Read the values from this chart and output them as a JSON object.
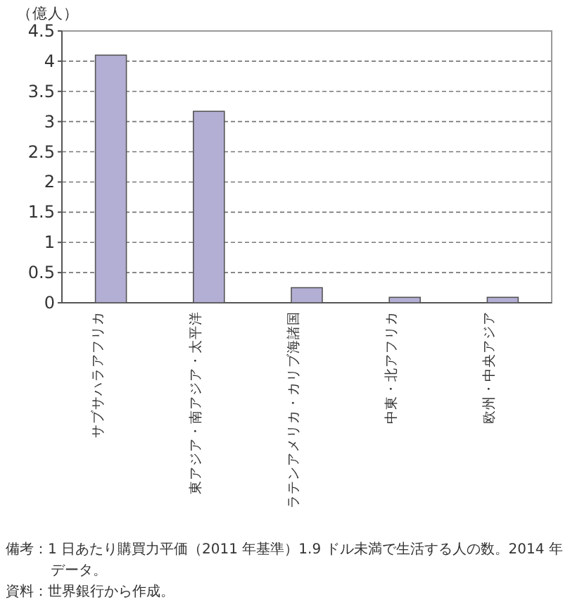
{
  "chart_data": {
    "type": "bar",
    "ylabel": "（億人）",
    "categories": [
      "サブサハラアフリカ",
      "東アジア・南アジア・太平洋",
      "ラテンアメリカ・カリブ海諸国",
      "中東・北アフリカ",
      "欧州・中央アジア"
    ],
    "values": [
      4.1,
      3.17,
      0.25,
      0.09,
      0.09
    ],
    "color": "#b3aed4",
    "ylim": [
      0,
      4.5
    ],
    "yticks": [
      0,
      0.5,
      1,
      1.5,
      2,
      2.5,
      3,
      3.5,
      4,
      4.5
    ],
    "grid": "y",
    "annotations": [
      "備考：1 日あたり購買力平価（2011 年基準）1.9 ドル未満で生活する人の数。2014 年データ。",
      "資料：世界銀行から作成。"
    ]
  }
}
